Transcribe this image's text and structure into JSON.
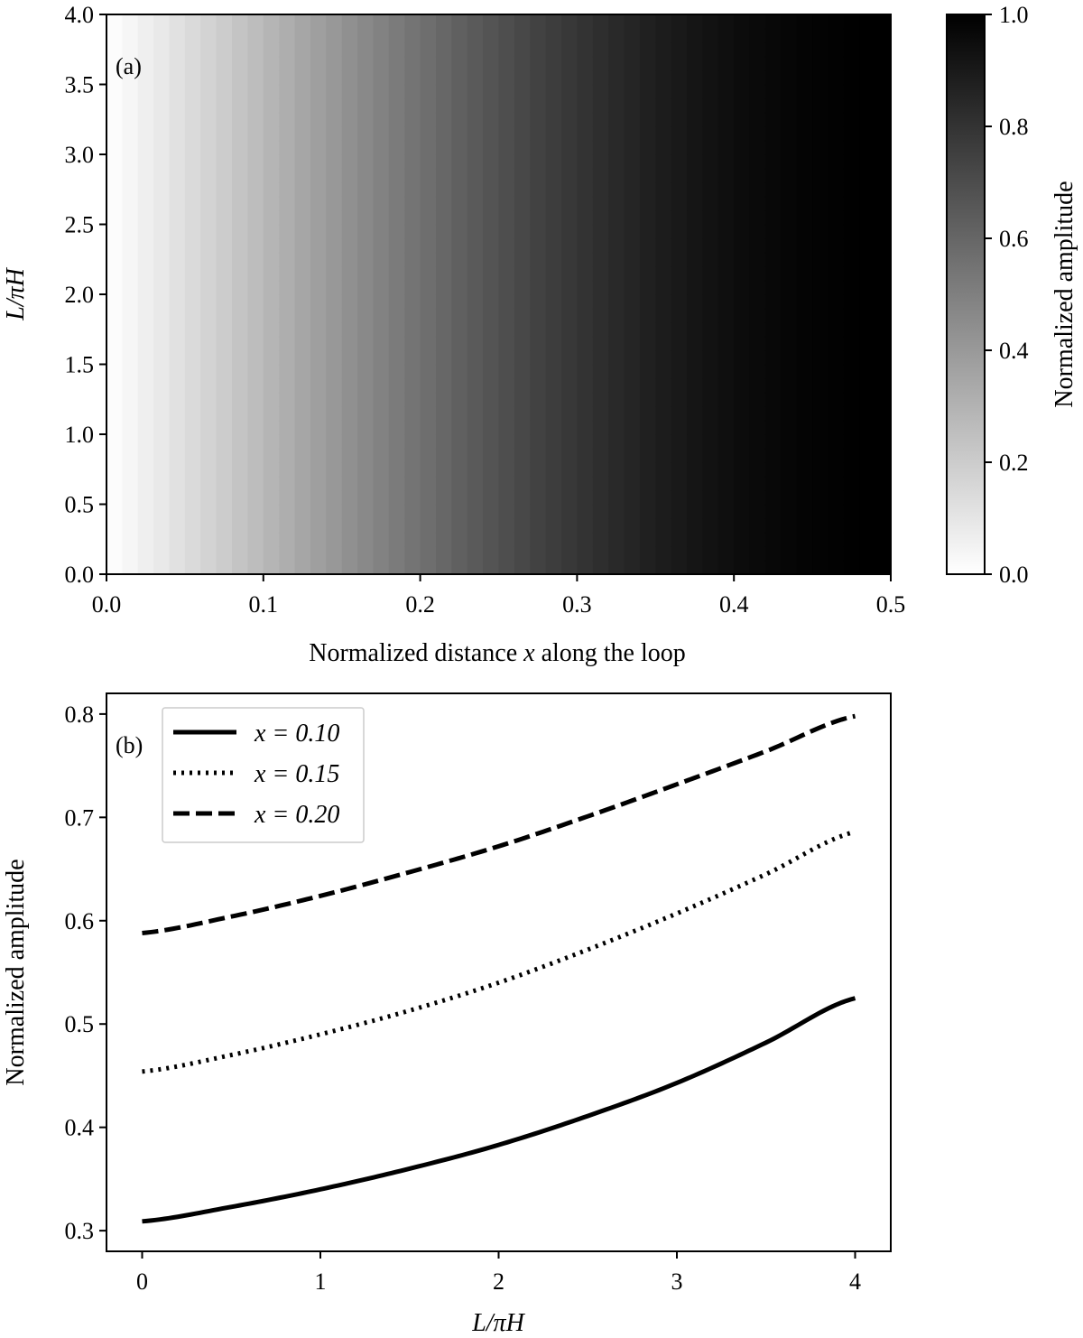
{
  "chart_data": [
    {
      "type": "heatmap",
      "panel_label": "(a)",
      "xlabel_parts": [
        "Normalized distance ",
        "x",
        " along the loop"
      ],
      "ylabel": "L/πH",
      "xlim": [
        0.0,
        0.5
      ],
      "ylim": [
        0.0,
        4.0
      ],
      "xticks": [
        "0.0",
        "0.1",
        "0.2",
        "0.3",
        "0.4",
        "0.5"
      ],
      "yticks": [
        "0.0",
        "0.5",
        "1.0",
        "1.5",
        "2.0",
        "2.5",
        "3.0",
        "3.5",
        "4.0"
      ],
      "x_columns": 50,
      "y_rows": 40,
      "value_model": "amplitude ≈ sin(π·x)^1.1 / sin(π/2)^1.1, nearly independent of L/πH",
      "colormap": "gray_r",
      "colorbar": {
        "label": "Normalized amplitude",
        "range": [
          0.0,
          1.0
        ],
        "ticks": [
          "0.0",
          "0.2",
          "0.4",
          "0.6",
          "0.8",
          "1.0"
        ]
      }
    },
    {
      "type": "line",
      "panel_label": "(b)",
      "xlabel": "L/πH",
      "ylabel": "Normalized amplitude",
      "xlim": [
        -0.2,
        4.2
      ],
      "ylim": [
        0.28,
        0.82
      ],
      "xticks": [
        "0",
        "1",
        "2",
        "3",
        "4"
      ],
      "yticks": [
        "0.3",
        "0.4",
        "0.5",
        "0.6",
        "0.7",
        "0.8"
      ],
      "legend_position": "top-left",
      "series": [
        {
          "name": "x = 0.10",
          "style": "solid",
          "x": [
            0,
            0.5,
            1,
            1.5,
            2,
            2.5,
            3,
            3.5,
            4
          ],
          "y": [
            0.309,
            0.323,
            0.34,
            0.36,
            0.383,
            0.411,
            0.443,
            0.482,
            0.525
          ]
        },
        {
          "name": "x = 0.15",
          "style": "dotted",
          "x": [
            0,
            0.5,
            1,
            1.5,
            2,
            2.5,
            3,
            3.5,
            4
          ],
          "y": [
            0.454,
            0.47,
            0.49,
            0.513,
            0.54,
            0.572,
            0.607,
            0.645,
            0.686
          ]
        },
        {
          "name": "x = 0.20",
          "style": "dashed",
          "x": [
            0,
            0.5,
            1,
            1.5,
            2,
            2.5,
            3,
            3.5,
            4
          ],
          "y": [
            0.588,
            0.604,
            0.624,
            0.647,
            0.672,
            0.701,
            0.732,
            0.764,
            0.798
          ]
        }
      ]
    }
  ]
}
